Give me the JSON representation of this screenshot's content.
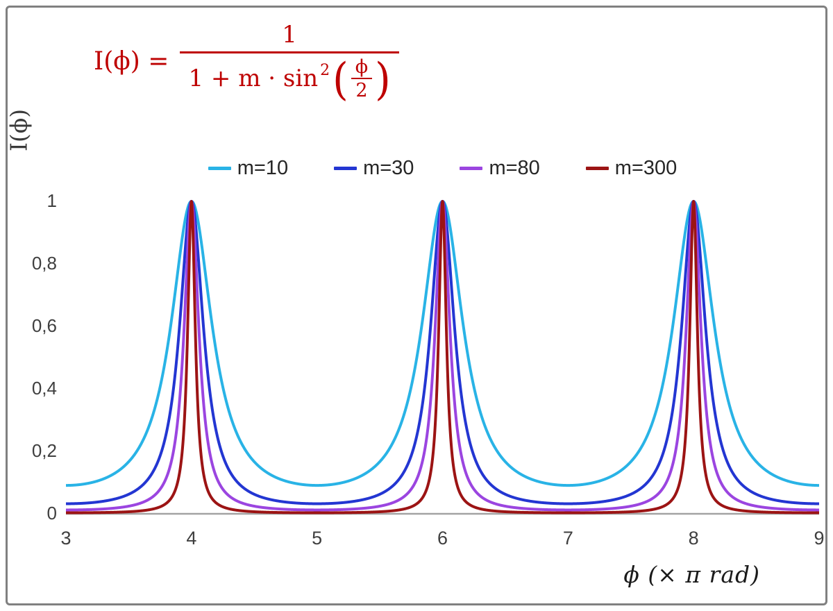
{
  "frame": {
    "border_color": "#808080"
  },
  "formula": {
    "lhs": "I(ϕ) =",
    "numerator": "1",
    "den_prefix": "1 + m · sin",
    "den_sup": "2",
    "open_paren": "(",
    "inner_numerator": "ϕ",
    "inner_denominator": "2",
    "close_paren": ")",
    "color": "#BE0000"
  },
  "chart_data": {
    "type": "line",
    "function": "I(phi) = 1 / (1 + m * sin^2(phi/2)); x axis is phi in units of pi rad",
    "series": [
      {
        "name": "m=10",
        "m": 10,
        "color": "#29B3E6"
      },
      {
        "name": "m=30",
        "m": 30,
        "color": "#2336D2"
      },
      {
        "name": "m=80",
        "m": 80,
        "color": "#9B45E0"
      },
      {
        "name": "m=300",
        "m": 300,
        "color": "#9C1414"
      }
    ],
    "x_axis": {
      "label": "ϕ  (× π rad)",
      "min": 3,
      "max": 9,
      "ticks": [
        3,
        4,
        5,
        6,
        7,
        8,
        9
      ]
    },
    "y_axis": {
      "label": "I(ϕ)",
      "min": 0,
      "max": 1,
      "ticks": [
        {
          "value": 0,
          "label": "0"
        },
        {
          "value": 0.2,
          "label": "0,2"
        },
        {
          "value": 0.4,
          "label": "0,4"
        },
        {
          "value": 0.6,
          "label": "0,6"
        },
        {
          "value": 0.8,
          "label": "0,8"
        },
        {
          "value": 1,
          "label": "1"
        }
      ]
    },
    "peaks_at_x": [
      4,
      6,
      8
    ],
    "peak_value": 1,
    "legend_position": "top",
    "grid": false,
    "axis_color": "#A3A3A3",
    "tick_label_color": "#3f3f3f"
  }
}
